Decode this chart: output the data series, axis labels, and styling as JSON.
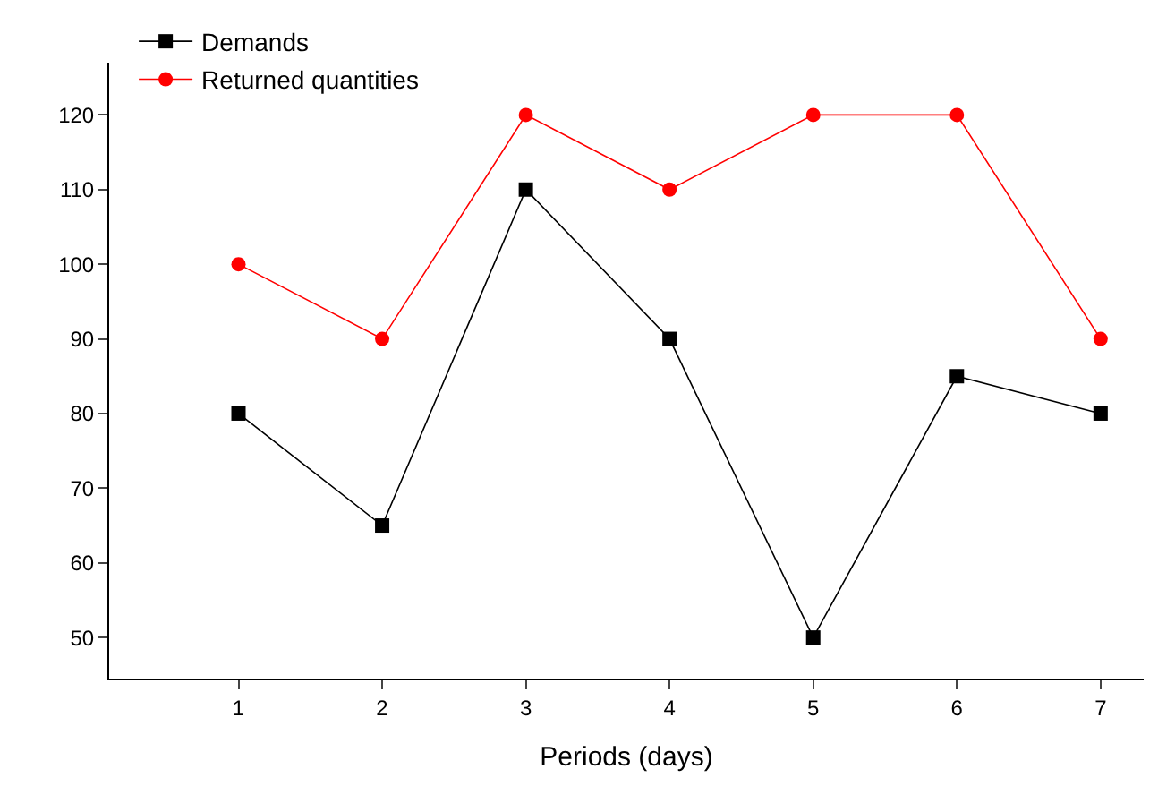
{
  "chart_data": {
    "type": "line",
    "xlabel": "Periods (days)",
    "x": [
      1,
      2,
      3,
      4,
      5,
      6,
      7
    ],
    "series": [
      {
        "name": "Demands",
        "color": "#000000",
        "marker": "square",
        "values": [
          80,
          65,
          110,
          90,
          50,
          85,
          80
        ]
      },
      {
        "name": "Returned quantities",
        "color": "#ff0000",
        "marker": "circle",
        "values": [
          100,
          90,
          120,
          110,
          120,
          120,
          90
        ]
      }
    ],
    "xlim": [
      0.1,
      7.3
    ],
    "xticks": [
      1,
      2,
      3,
      4,
      5,
      6,
      7
    ],
    "ylim": [
      44.5,
      127
    ],
    "yticks": [
      50,
      60,
      70,
      80,
      90,
      100,
      110,
      120
    ],
    "legend": "top left",
    "line_style": "solid"
  }
}
